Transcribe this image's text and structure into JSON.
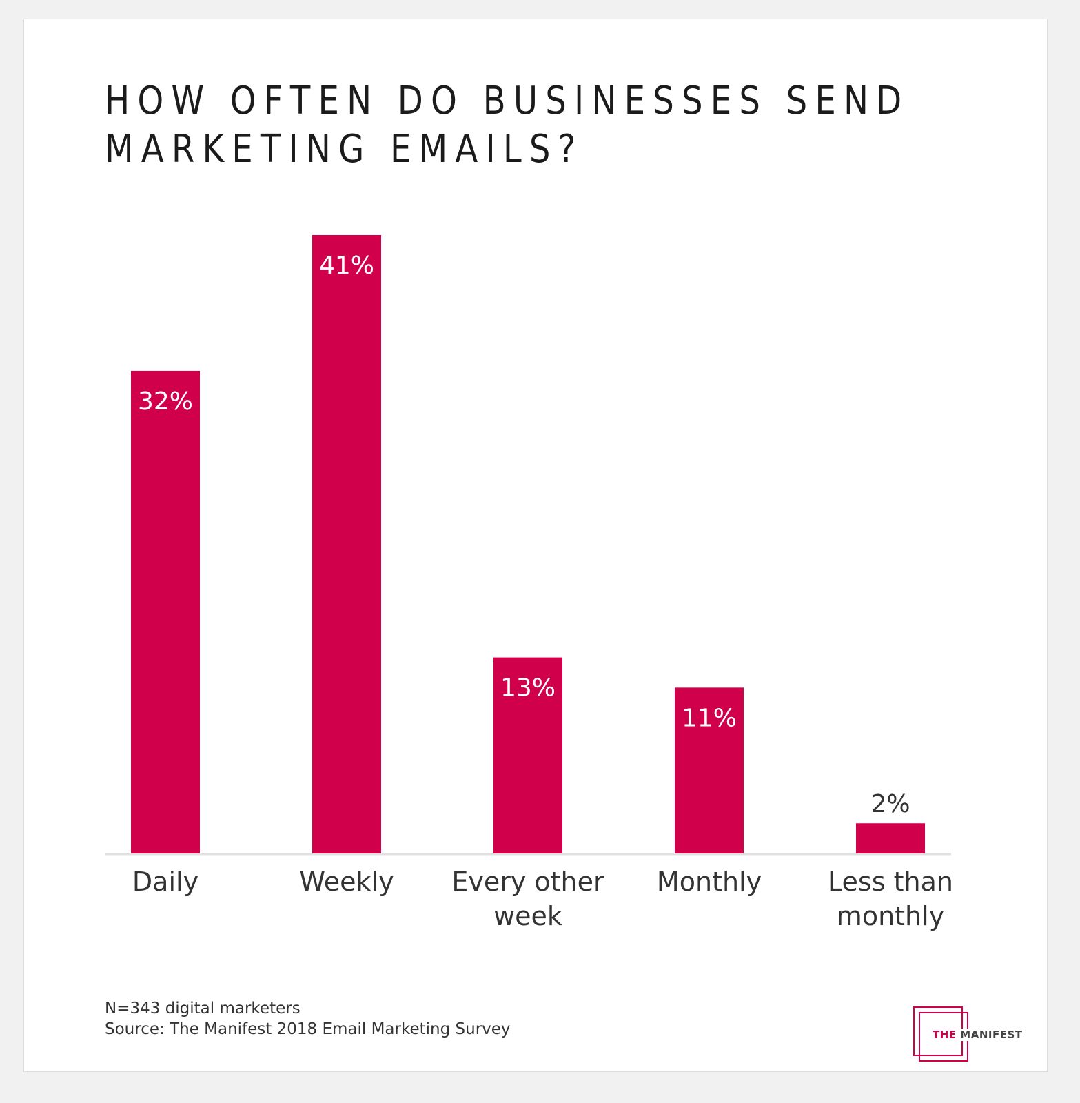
{
  "chart_data": {
    "type": "bar",
    "title": "HOW OFTEN DO BUSINESSES SEND\nMARKETING EMAILS?",
    "categories": [
      [
        "Daily"
      ],
      [
        "Weekly"
      ],
      [
        "Every other",
        "week"
      ],
      [
        "Monthly"
      ],
      [
        "Less than",
        "monthly"
      ]
    ],
    "values": [
      32,
      41,
      13,
      11,
      2
    ],
    "value_labels": [
      "32%",
      "41%",
      "13%",
      "11%",
      "2%"
    ],
    "value_unit": "%",
    "ylim": [
      0,
      41
    ],
    "grid": false,
    "bar_color": "#d0004a"
  },
  "footnote": {
    "sample": "N=343 digital marketers",
    "source": "Source: The Manifest 2018 Email Marketing Survey"
  },
  "logo": {
    "part1": "THE",
    "part2": "MANIFEST"
  }
}
